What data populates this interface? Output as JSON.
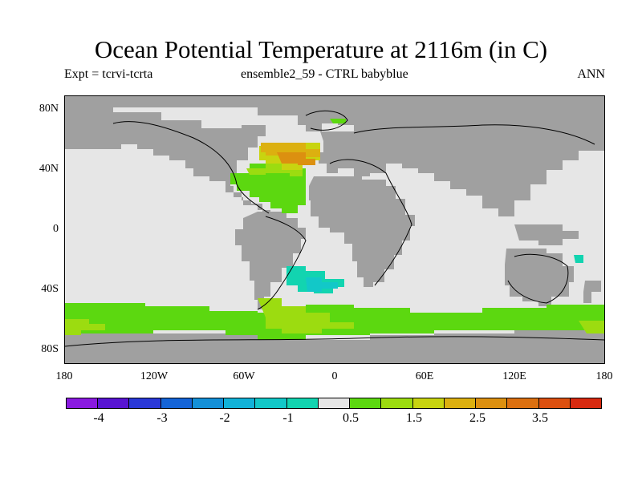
{
  "title": "Ocean Potential Temperature at 2116m (in C)",
  "subtitle_left": "Expt = tcrvi-tcrta",
  "subtitle_center": "ensemble2_59 - CTRL babyblue",
  "subtitle_right": "ANN",
  "map": {
    "lat_labels": [
      "80N",
      "40N",
      "0",
      "40S",
      "80S"
    ],
    "lon_labels": [
      "180",
      "120W",
      "60W",
      "0",
      "60E",
      "120E",
      "180"
    ],
    "land_color": "#a0a0a0",
    "ocean_neutral_color": "#e6e6e6"
  },
  "colorbar": {
    "colors": [
      "#8a1ae0",
      "#5814d2",
      "#2a38d8",
      "#1464d8",
      "#1490d8",
      "#12b2d8",
      "#12c8c8",
      "#12d4b0",
      "#e6e6e6",
      "#5cd810",
      "#9cdc10",
      "#c8d410",
      "#dcb010",
      "#dc9010",
      "#dc7010",
      "#dc5010",
      "#d82a10"
    ],
    "labels": [
      "-4",
      "-3",
      "-2",
      "-1",
      "0.5",
      "1.5",
      "2.5",
      "3.5"
    ]
  }
}
